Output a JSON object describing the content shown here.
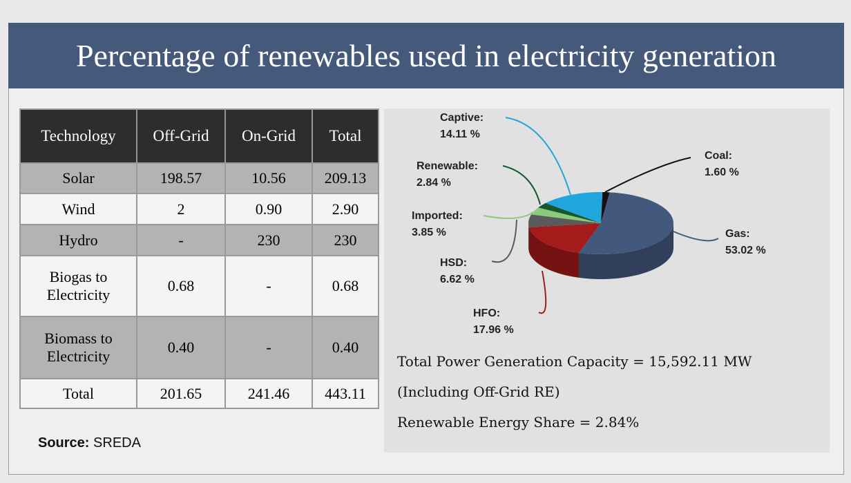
{
  "title": "Percentage of renewables used in electricity generation",
  "table": {
    "header": [
      "Technology",
      "Off-Grid",
      "On-Grid",
      "Total"
    ],
    "rows": [
      [
        "Solar",
        "198.57",
        "10.56",
        "209.13"
      ],
      [
        "Wind",
        "2",
        "0.90",
        "2.90"
      ],
      [
        "Hydro",
        "-",
        "230",
        "230"
      ],
      [
        "Biogas to Electricity",
        "0.68",
        "-",
        "0.68"
      ],
      [
        "Biomass to Electricity",
        "0.40",
        "-",
        "0.40"
      ],
      [
        "Total",
        "201.65",
        "241.46",
        "443.11"
      ]
    ]
  },
  "source": {
    "label": "Source:",
    "value": "SREDA"
  },
  "chart_data": {
    "type": "pie",
    "categories": [
      "Coal:",
      "Gas:",
      "HFO:",
      "HSD:",
      "Imported:",
      "Renewable:",
      "Captive:"
    ],
    "values": [
      1.6,
      53.02,
      17.96,
      6.62,
      3.85,
      2.84,
      14.11
    ],
    "value_labels": [
      "1.60 %",
      "53.02 %",
      "17.96 %",
      "6.62 %",
      "3.85 %",
      "2.84 %",
      "14.11 %"
    ],
    "colors": [
      "#111111",
      "#42597d",
      "#a31b1b",
      "#5a5a5a",
      "#8dc97a",
      "#17572b",
      "#1fa6dc"
    ]
  },
  "notes": [
    "Total Power Generation Capacity = 15,592.11 MW",
    "(Including Off-Grid RE)",
    "Renewable Energy Share = 2.84%"
  ]
}
